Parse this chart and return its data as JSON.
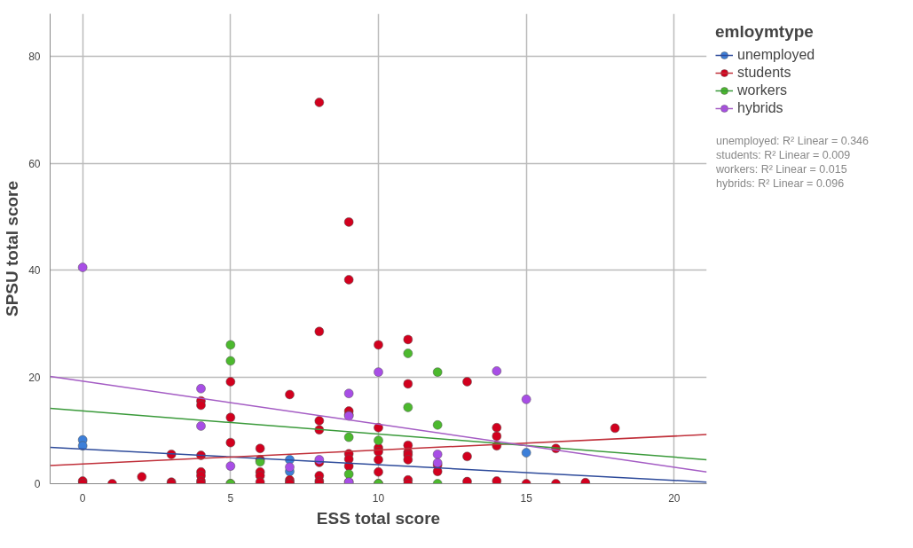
{
  "chart_data": {
    "type": "scatter",
    "xlabel": "ESS total score",
    "ylabel": "SPSU total score",
    "legend_title": "emloymtype",
    "xlim": [
      -1.1,
      21.1
    ],
    "ylim": [
      0,
      88
    ],
    "xticks": [
      0,
      5,
      10,
      15,
      20
    ],
    "yticks": [
      0,
      20,
      40,
      60,
      80
    ],
    "grid": true,
    "legend": "right",
    "marker": "circle",
    "series": [
      {
        "name": "unemployed",
        "color": "#3d7fd9",
        "x": [
          0,
          0,
          7,
          7,
          15
        ],
        "values": [
          8.2,
          7.1,
          4.5,
          2.3,
          5.8
        ]
      },
      {
        "name": "students",
        "color": "#d2001e",
        "x": [
          0,
          0,
          1,
          2,
          3,
          3,
          3,
          4,
          4,
          4,
          4,
          4,
          4,
          4,
          5,
          5,
          5,
          5,
          6,
          6,
          6,
          6,
          6,
          7,
          7,
          7,
          7,
          8,
          8,
          8,
          8,
          8,
          8,
          8,
          8,
          9,
          9,
          9,
          9,
          9,
          9,
          9,
          9,
          10,
          10,
          10,
          10,
          10,
          10,
          10,
          11,
          11,
          11,
          11,
          11,
          11,
          11,
          11,
          12,
          12,
          13,
          13,
          13,
          14,
          14,
          14,
          14,
          15,
          16,
          16,
          17,
          18
        ],
        "values": [
          0.5,
          0,
          0,
          1.3,
          5.5,
          0.3,
          0,
          15.5,
          14.7,
          5.3,
          2.2,
          1.5,
          0.5,
          0,
          19.1,
          12.4,
          7.7,
          0,
          6.6,
          4.5,
          2.2,
          1.5,
          0.3,
          16.7,
          0.7,
          0.3,
          0,
          71.4,
          28.5,
          11.8,
          10.1,
          4,
          1.5,
          0.5,
          0,
          49,
          38.2,
          13.6,
          12.9,
          5.6,
          4.6,
          3.3,
          0.3,
          26,
          10.5,
          6.7,
          6,
          4.5,
          2.2,
          0,
          27,
          18.7,
          7.2,
          5.9,
          5.4,
          4.5,
          0.7,
          0,
          3.5,
          2.3,
          19.1,
          5.1,
          0.4,
          10.5,
          8.9,
          7.1,
          0.5,
          0,
          6.6,
          0,
          0.2,
          10.4
        ]
      },
      {
        "name": "workers",
        "color": "#4cb92e",
        "x": [
          5,
          5,
          5,
          6,
          9,
          9,
          10,
          10,
          11,
          11,
          12,
          12,
          12
        ],
        "values": [
          26,
          23,
          0,
          4.1,
          8.7,
          1.8,
          8.1,
          0,
          24.4,
          14.3,
          20.9,
          11,
          0
        ]
      },
      {
        "name": "hybrids",
        "color": "#a84ee6",
        "x": [
          0,
          4,
          4,
          5,
          7,
          8,
          9,
          9,
          9,
          10,
          12,
          12,
          14,
          15
        ],
        "values": [
          40.5,
          17.8,
          10.8,
          3.3,
          3.1,
          4.5,
          16.9,
          12.7,
          0.3,
          20.9,
          5.5,
          3.9,
          21.1,
          15.8
        ]
      },
      {
        "type": "line",
        "marker": "none",
        "color": "#2e4b9b",
        "x": [
          -1.1,
          21.1
        ],
        "values": [
          6.8,
          0.3
        ]
      },
      {
        "type": "line",
        "marker": "none",
        "color": "#c0303a",
        "x": [
          -1.1,
          21.1
        ],
        "values": [
          3.4,
          9.2
        ]
      },
      {
        "type": "line",
        "marker": "none",
        "color": "#3a9a3a",
        "x": [
          -1.1,
          21.1
        ],
        "values": [
          14.1,
          4.5
        ]
      },
      {
        "type": "line",
        "marker": "none",
        "color": "#a45cc4",
        "x": [
          -1.1,
          21.1
        ],
        "values": [
          20.1,
          2.2
        ]
      }
    ],
    "annotations": [
      "unemployed: R² Linear = 0.346",
      "students: R² Linear = 0.009",
      "workers: R² Linear = 0.015",
      "hybrids: R² Linear = 0.096"
    ]
  }
}
